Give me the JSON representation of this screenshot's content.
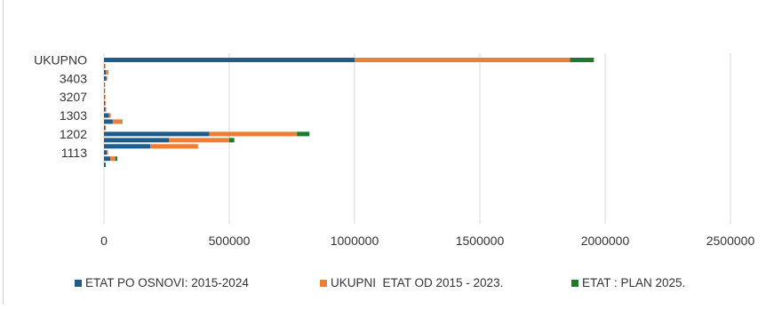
{
  "colors": {
    "series": [
      "#1f5c8b",
      "#f07d36",
      "#1c7a2e"
    ],
    "grid": "#d9d9d9",
    "tick_text": "#333333"
  },
  "chart_data": {
    "type": "bar",
    "orientation": "horizontal",
    "stacked": true,
    "title": "",
    "xlabel": "",
    "ylabel": "",
    "xlim": [
      0,
      2500000
    ],
    "xticks": [
      0,
      500000,
      1000000,
      1500000,
      2000000,
      2500000
    ],
    "xtick_labels": [
      "0",
      "500000",
      "1000000",
      "1500000",
      "2000000",
      "2500000"
    ],
    "grid": true,
    "legend_position": "bottom",
    "categories": [
      "UKUPNO",
      "",
      "",
      "3403",
      "",
      "",
      "3207",
      "",
      "",
      "1303",
      "",
      "",
      "1202",
      "",
      "",
      "1113",
      "",
      ""
    ],
    "series": [
      {
        "name": "ETAT PO OSNOVI: 2015-2024",
        "values": [
          1000000,
          3000,
          8000,
          10000,
          2000,
          2000,
          3000,
          4000,
          6000,
          20000,
          35000,
          5000,
          420000,
          260000,
          185000,
          12000,
          25000,
          7000
        ]
      },
      {
        "name": "UKUPNI  ETAT OD 2015 - 2023.",
        "values": [
          860000,
          2000,
          10000,
          2000,
          1000,
          2000,
          2000,
          3000,
          3000,
          7000,
          35000,
          3000,
          350000,
          240000,
          190000,
          4000,
          20000,
          0
        ]
      },
      {
        "name": "ETAT : PLAN 2025.",
        "values": [
          95000,
          0,
          0,
          0,
          0,
          0,
          0,
          0,
          0,
          0,
          2000,
          0,
          50000,
          20000,
          0,
          0,
          8000,
          0
        ]
      }
    ]
  }
}
